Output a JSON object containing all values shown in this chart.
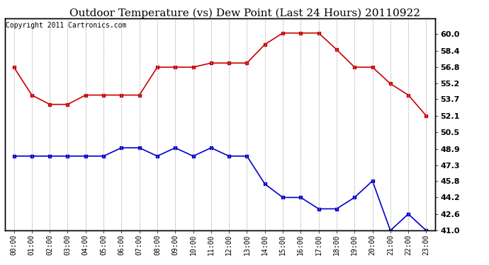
{
  "title": "Outdoor Temperature (vs) Dew Point (Last 24 Hours) 20110922",
  "copyright": "Copyright 2011 Cartronics.com",
  "x_labels": [
    "00:00",
    "01:00",
    "02:00",
    "03:00",
    "04:00",
    "05:00",
    "06:00",
    "07:00",
    "08:00",
    "09:00",
    "10:00",
    "11:00",
    "12:00",
    "13:00",
    "14:00",
    "15:00",
    "16:00",
    "17:00",
    "18:00",
    "19:00",
    "20:00",
    "21:00",
    "22:00",
    "23:00"
  ],
  "temp_data": [
    56.8,
    54.1,
    53.2,
    53.2,
    54.1,
    54.1,
    54.1,
    54.1,
    56.8,
    56.8,
    56.8,
    57.2,
    57.2,
    57.2,
    59.0,
    60.1,
    60.1,
    60.1,
    58.5,
    56.8,
    56.8,
    55.2,
    54.1,
    52.1
  ],
  "dew_data": [
    48.2,
    48.2,
    48.2,
    48.2,
    48.2,
    48.2,
    49.0,
    49.0,
    48.2,
    49.0,
    48.2,
    49.0,
    48.2,
    48.2,
    45.5,
    44.2,
    44.2,
    43.1,
    43.1,
    44.2,
    45.8,
    41.0,
    42.6,
    41.0
  ],
  "temp_color": "#cc0000",
  "dew_color": "#0000cc",
  "marker": "s",
  "marker_size": 3,
  "ylim": [
    41.0,
    61.5
  ],
  "yticks_right": [
    60.0,
    58.4,
    56.8,
    55.2,
    53.7,
    52.1,
    50.5,
    48.9,
    47.3,
    45.8,
    44.2,
    42.6,
    41.0
  ],
  "bg_color": "#ffffff",
  "plot_bg_color": "#ffffff",
  "grid_color": "#aaaaaa",
  "title_fontsize": 11,
  "copyright_fontsize": 7,
  "tick_fontsize": 7,
  "ytick_fontsize": 8
}
